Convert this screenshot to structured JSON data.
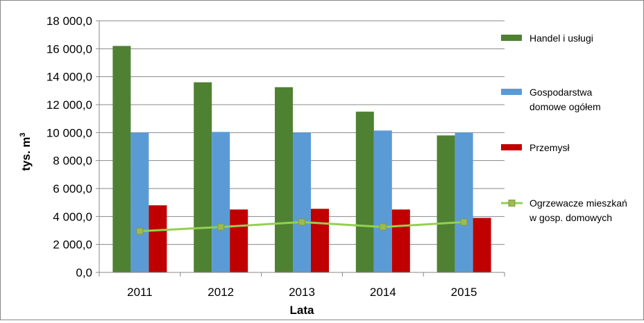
{
  "chart_data": {
    "type": "bar",
    "title": "",
    "xlabel": "Lata",
    "ylabel": "tys. m",
    "ylabel_superscript": "3",
    "ylim": [
      0,
      18000
    ],
    "y_ticks": [
      "0,0",
      "2 000,0",
      "4 000,0",
      "6 000,0",
      "8 000,0",
      "10 000,0",
      "12 000,0",
      "14 000,0",
      "16 000,0",
      "18 000,0"
    ],
    "categories": [
      "2011",
      "2012",
      "2013",
      "2014",
      "2015"
    ],
    "grid": true,
    "legend_position": "right",
    "series": [
      {
        "name": "Handel i usługi",
        "kind": "bar",
        "color": "#4f8132",
        "values": [
          16200,
          13600,
          13250,
          11500,
          9800
        ]
      },
      {
        "name": "Gospodarstwa domowe ogółem",
        "name_lines": [
          "Gospodarstwa",
          "domowe ogółem"
        ],
        "kind": "bar",
        "color": "#5b9bd5",
        "values": [
          10000,
          10050,
          10000,
          10150,
          10000
        ]
      },
      {
        "name": "Przemysł",
        "kind": "bar",
        "color": "#c00000",
        "values": [
          4800,
          4500,
          4550,
          4500,
          3900
        ]
      },
      {
        "name": "Ogrzewacze mieszkań w gosp. domowych",
        "name_lines": [
          "Ogrzewacze mieszkań",
          "w gosp. domowych"
        ],
        "kind": "line",
        "color": "#92d050",
        "marker_color": "#9bbb59",
        "values": [
          2950,
          3250,
          3600,
          3250,
          3600
        ]
      }
    ]
  }
}
